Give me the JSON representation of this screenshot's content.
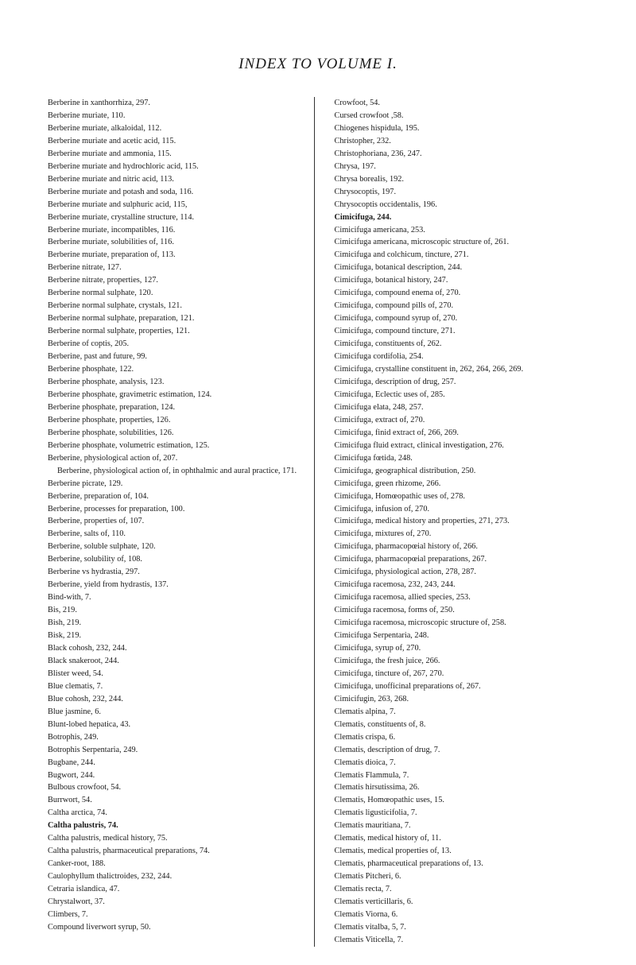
{
  "title": "INDEX TO VOLUME I.",
  "leftColumn": [
    {
      "text": "Berberine in xanthorrhiza, 297.",
      "bold": false
    },
    {
      "text": "Berberine muriate, 110.",
      "bold": false
    },
    {
      "text": "Berberine muriate, alkaloidal, 112.",
      "bold": false
    },
    {
      "text": "Berberine muriate and acetic acid, 115.",
      "bold": false
    },
    {
      "text": "Berberine muriate and ammonia, 115.",
      "bold": false
    },
    {
      "text": "Berberine muriate and hydrochloric acid, 115.",
      "bold": false
    },
    {
      "text": "Berberine muriate and nitric acid, 113.",
      "bold": false
    },
    {
      "text": "Berberine muriate and potash and soda, 116.",
      "bold": false
    },
    {
      "text": "Berberine muriate and sulphuric acid, 115,",
      "bold": false
    },
    {
      "text": "Berberine muriate, crystalline structure, 114.",
      "bold": false
    },
    {
      "text": "Berberine muriate, incompatibles, 116.",
      "bold": false
    },
    {
      "text": "Berberine muriate, solubilities of, 116.",
      "bold": false
    },
    {
      "text": "Berberine muriate, preparation of, 113.",
      "bold": false
    },
    {
      "text": "Berberine nitrate, 127.",
      "bold": false
    },
    {
      "text": "Berberine nitrate, properties, 127.",
      "bold": false
    },
    {
      "text": "Berberine normal sulphate, 120.",
      "bold": false
    },
    {
      "text": "Berberine normal sulphate, crystals, 121.",
      "bold": false
    },
    {
      "text": "Berberine normal sulphate, preparation, 121.",
      "bold": false
    },
    {
      "text": "Berberine normal sulphate, properties, 121.",
      "bold": false
    },
    {
      "text": "Berberine of coptis, 205.",
      "bold": false
    },
    {
      "text": "Berberine, past and future, 99.",
      "bold": false
    },
    {
      "text": "Berberine phosphate, 122.",
      "bold": false
    },
    {
      "text": "Berberine phosphate, analysis, 123.",
      "bold": false
    },
    {
      "text": "Berberine phosphate, gravimetric estimation, 124.",
      "bold": false
    },
    {
      "text": "Berberine phosphate, preparation, 124.",
      "bold": false
    },
    {
      "text": "Berberine phosphate, properties, 126.",
      "bold": false
    },
    {
      "text": "Berberine phosphate, solubilities, 126.",
      "bold": false
    },
    {
      "text": "Berberine phosphate, volumetric estimation, 125.",
      "bold": false
    },
    {
      "text": "Berberine, physiological action of, 207.",
      "bold": false
    },
    {
      "text": "Berberine, physiological action of, in ophthalmic and aural practice, 171.",
      "bold": false,
      "sub": true
    },
    {
      "text": "Berberine picrate, 129.",
      "bold": false
    },
    {
      "text": "Berberine, preparation of, 104.",
      "bold": false
    },
    {
      "text": "Berberine, processes for preparation, 100.",
      "bold": false
    },
    {
      "text": "Berberine, properties of, 107.",
      "bold": false
    },
    {
      "text": "Berberine, salts of, 110.",
      "bold": false
    },
    {
      "text": "Berberine, soluble sulphate, 120.",
      "bold": false
    },
    {
      "text": "Berberine, solubility of, 108.",
      "bold": false
    },
    {
      "text": "Berberine vs hydrastia, 297.",
      "bold": false
    },
    {
      "text": "Berberine, yield from hydrastis, 137.",
      "bold": false
    },
    {
      "text": "Bind-with, 7.",
      "bold": false
    },
    {
      "text": "Bis, 219.",
      "bold": false
    },
    {
      "text": "Bish, 219.",
      "bold": false
    },
    {
      "text": "Bisk, 219.",
      "bold": false
    },
    {
      "text": "Black cohosh, 232, 244.",
      "bold": false
    },
    {
      "text": "Black snakeroot, 244.",
      "bold": false
    },
    {
      "text": "Blister weed, 54.",
      "bold": false
    },
    {
      "text": "Blue clematis, 7.",
      "bold": false
    },
    {
      "text": "Blue cohosh, 232, 244.",
      "bold": false
    },
    {
      "text": "Blue jasmine, 6.",
      "bold": false
    },
    {
      "text": "Blunt-lobed hepatica, 43.",
      "bold": false
    },
    {
      "text": "Botrophis, 249.",
      "bold": false
    },
    {
      "text": "Botrophis Serpentaria, 249.",
      "bold": false
    },
    {
      "text": "Bugbane, 244.",
      "bold": false
    },
    {
      "text": "Bugwort, 244.",
      "bold": false
    },
    {
      "text": "Bulbous crowfoot, 54.",
      "bold": false
    },
    {
      "text": "Burrwort, 54.",
      "bold": false
    },
    {
      "text": "Caltha arctica, 74.",
      "bold": false
    },
    {
      "text": "Caltha palustris, 74.",
      "bold": true
    },
    {
      "text": "Caltha palustris, medical history, 75.",
      "bold": false
    },
    {
      "text": "Caltha palustris, pharmaceutical preparations, 74.",
      "bold": false
    },
    {
      "text": "Canker-root, 188.",
      "bold": false
    },
    {
      "text": "Caulophyllum thalictroides, 232, 244.",
      "bold": false
    },
    {
      "text": "Cetraria islandica, 47.",
      "bold": false
    },
    {
      "text": "Chrystalwort, 37.",
      "bold": false
    },
    {
      "text": "Climbers, 7.",
      "bold": false
    },
    {
      "text": "Compound liverwort syrup, 50.",
      "bold": false
    }
  ],
  "rightColumn": [
    {
      "text": "Crowfoot, 54.",
      "bold": false
    },
    {
      "text": "Cursed crowfoot ,58.",
      "bold": false
    },
    {
      "text": "Chiogenes hispidula, 195.",
      "bold": false
    },
    {
      "text": "Christopher, 232.",
      "bold": false
    },
    {
      "text": "Christophoriana, 236, 247.",
      "bold": false
    },
    {
      "text": "Chrysa, 197.",
      "bold": false
    },
    {
      "text": "Chrysa borealis, 192.",
      "bold": false
    },
    {
      "text": "Chrysocoptis, 197.",
      "bold": false
    },
    {
      "text": "Chrysocoptis occidentalis, 196.",
      "bold": false
    },
    {
      "text": "Cimicifuga, 244.",
      "bold": true
    },
    {
      "text": "Cimicifuga americana, 253.",
      "bold": false
    },
    {
      "text": "Cimicifuga americana, microscopic structure of, 261.",
      "bold": false
    },
    {
      "text": "Cimicifuga and colchicum, tincture, 271.",
      "bold": false
    },
    {
      "text": "Cimicifuga, botanical description, 244.",
      "bold": false
    },
    {
      "text": "Cimicifuga, botanical history, 247.",
      "bold": false
    },
    {
      "text": "Cimicifuga, compound enema of, 270.",
      "bold": false
    },
    {
      "text": "Cimicifuga, compound pills of, 270.",
      "bold": false
    },
    {
      "text": "Cimicifuga, compound syrup of, 270.",
      "bold": false
    },
    {
      "text": "Cimicifuga, compound tincture, 271.",
      "bold": false
    },
    {
      "text": "Cimicifuga, constituents of, 262.",
      "bold": false
    },
    {
      "text": "Cimicifuga cordifolia, 254.",
      "bold": false
    },
    {
      "text": "Cimicifuga, crystalline constituent in, 262, 264, 266, 269.",
      "bold": false
    },
    {
      "text": "Cimicifuga, description of drug, 257.",
      "bold": false
    },
    {
      "text": "Cimicifuga, Eclectic uses of, 285.",
      "bold": false
    },
    {
      "text": "Cimicifuga elata, 248, 257.",
      "bold": false
    },
    {
      "text": "Cimicifuga, extract of, 270.",
      "bold": false
    },
    {
      "text": "Cimicifuga, finid extract of, 266, 269.",
      "bold": false
    },
    {
      "text": "Cimicifuga fluid extract, clinical investigation, 276.",
      "bold": false
    },
    {
      "text": "Cimicifuga fœtida, 248.",
      "bold": false
    },
    {
      "text": "Cimicifuga, geographical distribution, 250.",
      "bold": false
    },
    {
      "text": "Cimicifuga, green rhizome, 266.",
      "bold": false
    },
    {
      "text": "Cimicifuga, Homœopathic uses of, 278.",
      "bold": false
    },
    {
      "text": "Cimicifuga, infusion of, 270.",
      "bold": false
    },
    {
      "text": "Cimicifuga, medical history and properties, 271, 273.",
      "bold": false
    },
    {
      "text": "Cimicifuga, mixtures of, 270.",
      "bold": false
    },
    {
      "text": "Cimicifuga, pharmacopœial history of, 266.",
      "bold": false
    },
    {
      "text": "Cimicifuga, pharmacopœial preparations, 267.",
      "bold": false
    },
    {
      "text": "Cimicifuga, physiological action, 278, 287.",
      "bold": false
    },
    {
      "text": "Cimicifuga racemosa, 232, 243, 244.",
      "bold": false
    },
    {
      "text": "Cimicifuga racemosa, allied species, 253.",
      "bold": false
    },
    {
      "text": "Cimicifuga racemosa, forms of, 250.",
      "bold": false
    },
    {
      "text": "Cimicifuga racemosa, microscopic structure of, 258.",
      "bold": false
    },
    {
      "text": "Cimicifuga Serpentaria, 248.",
      "bold": false
    },
    {
      "text": "Cimicifuga, syrup of, 270.",
      "bold": false
    },
    {
      "text": "Cimicifuga, the fresh juice, 266.",
      "bold": false
    },
    {
      "text": "Cimicifuga, tincture of, 267, 270.",
      "bold": false
    },
    {
      "text": "Cimicifuga, unofficinal preparations of, 267.",
      "bold": false
    },
    {
      "text": "Cimicifugin, 263, 268.",
      "bold": false
    },
    {
      "text": "Clematis alpina, 7.",
      "bold": false
    },
    {
      "text": "Clematis, constituents of, 8.",
      "bold": false
    },
    {
      "text": "Clematis crispa, 6.",
      "bold": false
    },
    {
      "text": "Clematis, description of drug, 7.",
      "bold": false
    },
    {
      "text": "Clematis dioica, 7.",
      "bold": false
    },
    {
      "text": "Clematis Flammula, 7.",
      "bold": false
    },
    {
      "text": "Clematis hirsutissima, 26.",
      "bold": false
    },
    {
      "text": "Clematis, Homœopathic uses, 15.",
      "bold": false
    },
    {
      "text": "Clematis ligusticifolia, 7.",
      "bold": false
    },
    {
      "text": "Clematis mauritiana, 7.",
      "bold": false
    },
    {
      "text": "Clematis, medical history of, 11.",
      "bold": false
    },
    {
      "text": "Clematis, medical properties of, 13.",
      "bold": false
    },
    {
      "text": "Clematis, pharmaceutical preparations of, 13.",
      "bold": false
    },
    {
      "text": "Clematis Pitcheri, 6.",
      "bold": false
    },
    {
      "text": "Clematis recta, 7.",
      "bold": false
    },
    {
      "text": "Clematis verticillaris, 6.",
      "bold": false
    },
    {
      "text": "Clematis Viorna, 6.",
      "bold": false
    },
    {
      "text": "Clematis vitalba, 5, 7.",
      "bold": false
    },
    {
      "text": "Clematis Viticella, 7.",
      "bold": false
    }
  ]
}
